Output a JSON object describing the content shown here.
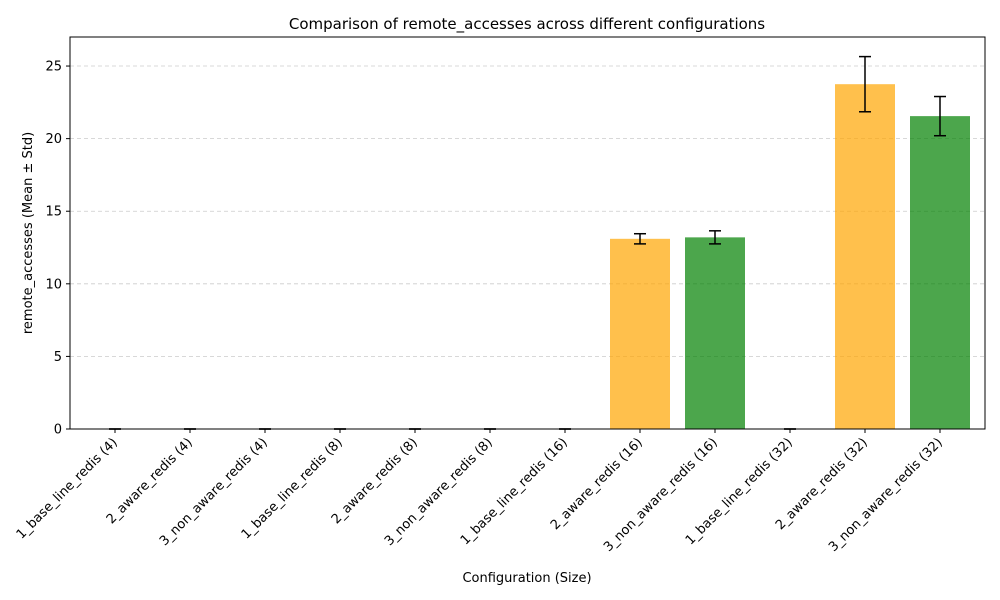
{
  "chart_data": {
    "type": "bar",
    "title": "Comparison of remote_accesses across different configurations",
    "xlabel": "Configuration (Size)",
    "ylabel": "remote_accesses (Mean ± Std)",
    "ylim": [
      0,
      27
    ],
    "yticks": [
      0,
      5,
      10,
      15,
      20,
      25
    ],
    "grid": "y-dashed",
    "categories": [
      "1_base_line_redis (4)",
      "2_aware_redis (4)",
      "3_non_aware_redis (4)",
      "1_base_line_redis (8)",
      "2_aware_redis (8)",
      "3_non_aware_redis (8)",
      "1_base_line_redis (16)",
      "2_aware_redis (16)",
      "3_non_aware_redis (16)",
      "1_base_line_redis (32)",
      "2_aware_redis (32)",
      "3_non_aware_redis (32)"
    ],
    "values": [
      0,
      0,
      0,
      0,
      0,
      0,
      0,
      13.1,
      13.2,
      0,
      23.75,
      21.55
    ],
    "errors": [
      0,
      0,
      0,
      0,
      0,
      0,
      0,
      0.35,
      0.45,
      0,
      1.9,
      1.35
    ],
    "colors": [
      "#1f77b4",
      "#ffa500",
      "#008000",
      "#1f77b4",
      "#ffa500",
      "#008000",
      "#1f77b4",
      "#ffa500",
      "#008000",
      "#1f77b4",
      "#ffa500",
      "#008000"
    ]
  }
}
